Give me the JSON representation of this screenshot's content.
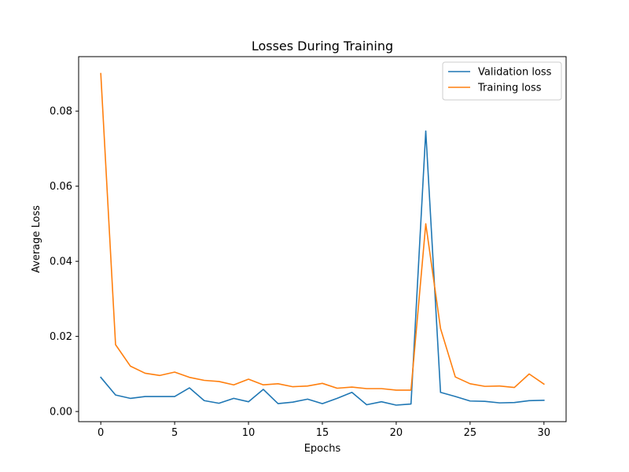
{
  "chart_data": {
    "type": "line",
    "title": "Losses During Training",
    "xlabel": "Epochs",
    "ylabel": "Average Loss",
    "xlim": [
      -1.5,
      31.5
    ],
    "ylim": [
      -0.0027,
      0.0945
    ],
    "xticks": [
      0,
      5,
      10,
      15,
      20,
      25,
      30
    ],
    "xtick_labels": [
      "0",
      "5",
      "10",
      "15",
      "20",
      "25",
      "30"
    ],
    "yticks": [
      0.0,
      0.02,
      0.04,
      0.06,
      0.08
    ],
    "ytick_labels": [
      "0.00",
      "0.02",
      "0.04",
      "0.06",
      "0.08"
    ],
    "grid": false,
    "legend_position": "top-right",
    "x": [
      0,
      1,
      2,
      3,
      4,
      5,
      6,
      7,
      8,
      9,
      10,
      11,
      12,
      13,
      14,
      15,
      16,
      17,
      18,
      19,
      20,
      21,
      22,
      23,
      24,
      25,
      26,
      27,
      28,
      29,
      30
    ],
    "series": [
      {
        "name": "Validation loss",
        "color": "#1f77b4",
        "values": [
          0.0091,
          0.0044,
          0.0035,
          0.004,
          0.004,
          0.004,
          0.0063,
          0.0029,
          0.0022,
          0.0035,
          0.0026,
          0.0059,
          0.0021,
          0.0025,
          0.0033,
          0.0021,
          0.0035,
          0.0051,
          0.0018,
          0.0026,
          0.0017,
          0.002,
          0.0747,
          0.0051,
          0.004,
          0.0028,
          0.0027,
          0.0023,
          0.0024,
          0.0029,
          0.003
        ]
      },
      {
        "name": "Training loss",
        "color": "#ff7f0e",
        "values": [
          0.09,
          0.0178,
          0.0121,
          0.0102,
          0.0096,
          0.0105,
          0.0091,
          0.0083,
          0.008,
          0.0071,
          0.0086,
          0.0071,
          0.0074,
          0.0066,
          0.0068,
          0.0075,
          0.0062,
          0.0065,
          0.0061,
          0.0061,
          0.0057,
          0.0057,
          0.05,
          0.0221,
          0.0092,
          0.0074,
          0.0067,
          0.0068,
          0.0064,
          0.01,
          0.0073
        ]
      }
    ]
  }
}
